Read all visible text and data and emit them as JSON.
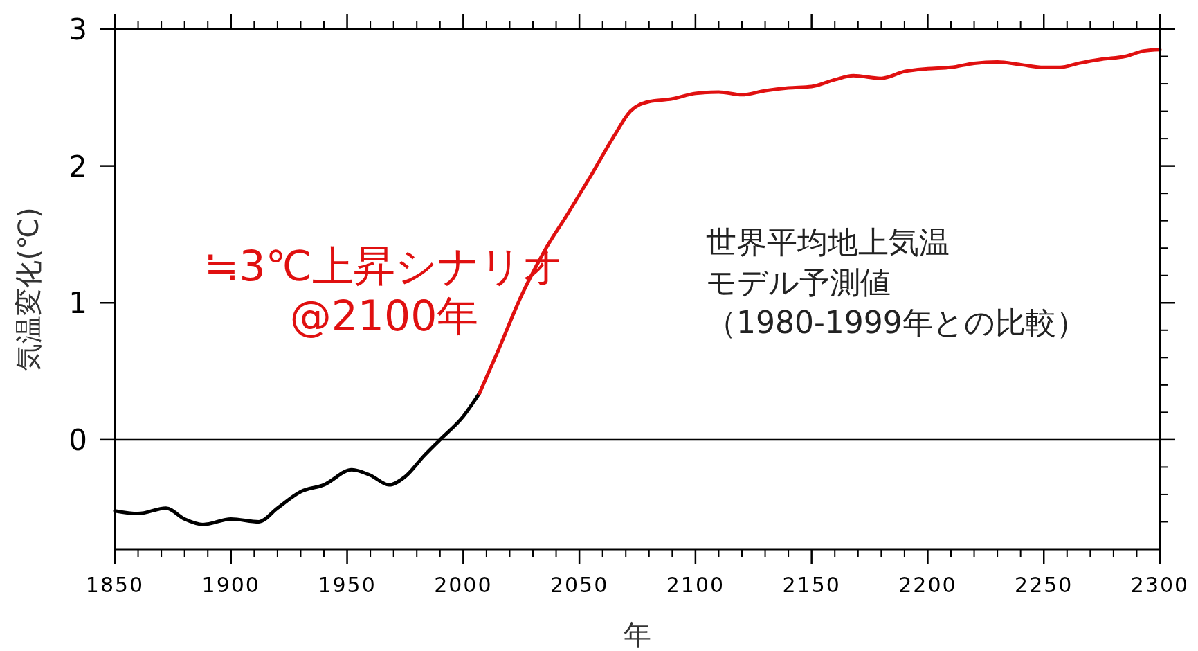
{
  "chart_data": {
    "type": "line",
    "xlabel": "年",
    "ylabel": "気温変化(℃)",
    "xlim": [
      1850,
      2300
    ],
    "xticks": [
      1850,
      1900,
      1950,
      2000,
      2050,
      2100,
      2150,
      2200,
      2250,
      2300
    ],
    "ylim": [
      -0.8,
      3
    ],
    "yticks": [
      0,
      1,
      2,
      3
    ],
    "grid": false,
    "line_style": "solid",
    "ref_lines": [
      {
        "axis": "y",
        "value": 0,
        "color": "#000000"
      }
    ],
    "series": [
      {
        "color": "#000000",
        "x": [
          1850,
          1860,
          1872,
          1880,
          1888,
          1900,
          1912,
          1920,
          1930,
          1940,
          1952,
          1960,
          1968,
          1975,
          1983,
          1990,
          2000,
          2007
        ],
        "values": [
          -0.52,
          -0.54,
          -0.5,
          -0.58,
          -0.62,
          -0.58,
          -0.6,
          -0.5,
          -0.38,
          -0.33,
          -0.22,
          -0.26,
          -0.33,
          -0.27,
          -0.12,
          0,
          0.17,
          0.34
        ]
      },
      {
        "color": "#e01010",
        "x": [
          2007,
          2015,
          2025,
          2035,
          2045,
          2055,
          2065,
          2072,
          2080,
          2090,
          2100,
          2110,
          2120,
          2130,
          2140,
          2150,
          2160,
          2168,
          2180,
          2190,
          2200,
          2210,
          2220,
          2230,
          2240,
          2250,
          2257,
          2265,
          2275,
          2285,
          2293,
          2300
        ],
        "values": [
          0.34,
          0.65,
          1.05,
          1.38,
          1.65,
          1.93,
          2.22,
          2.4,
          2.47,
          2.49,
          2.53,
          2.54,
          2.52,
          2.55,
          2.57,
          2.58,
          2.63,
          2.66,
          2.64,
          2.69,
          2.71,
          2.72,
          2.75,
          2.76,
          2.74,
          2.72,
          2.72,
          2.75,
          2.78,
          2.8,
          2.84,
          2.85
        ]
      }
    ],
    "annotations": [
      "≒3℃上昇シナリオ",
      "@2100年",
      "世界平均地上気温",
      "モデル予測値",
      "（1980-1999年との比較）"
    ]
  }
}
